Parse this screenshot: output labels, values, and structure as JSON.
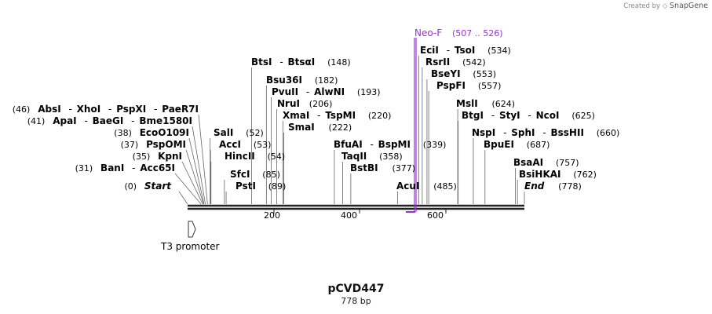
{
  "watermark": {
    "created_by": "Created by",
    "brand": "SnapGene"
  },
  "plasmid": {
    "name": "pCVD447",
    "size": "778 bp",
    "length": 778
  },
  "axis_ticks": [
    "200",
    "400",
    "600"
  ],
  "primer": {
    "name": "Neo-F",
    "range": "(507 .. 526)",
    "color": "#9b30d8",
    "start": 507,
    "end": 526
  },
  "feature": {
    "name": "T3 promoter"
  },
  "sites_left": [
    {
      "parts": [
        "AbsI",
        "XhoI",
        "PspXI",
        "PaeR7I"
      ],
      "pos": "(46)"
    },
    {
      "parts": [
        "ApaI",
        "BaeGI",
        "Bme1580I"
      ],
      "pos": "(41)"
    },
    {
      "parts": [
        "EcoO109I"
      ],
      "pos": "(38)"
    },
    {
      "parts": [
        "PspOMI"
      ],
      "pos": "(37)"
    },
    {
      "parts": [
        "KpnI"
      ],
      "pos": "(35)"
    },
    {
      "parts": [
        "BanI",
        "Acc65I"
      ],
      "pos": "(31)"
    },
    {
      "parts": [
        "Start"
      ],
      "pos": "(0)",
      "italic": true
    }
  ],
  "sites_right": [
    {
      "parts": [
        "BtsI",
        "BtsαI"
      ],
      "pos": "(148)"
    },
    {
      "parts": [
        "Bsu36I"
      ],
      "pos": "(182)"
    },
    {
      "parts": [
        "PvuII",
        "AlwNI"
      ],
      "pos": "(193)"
    },
    {
      "parts": [
        "NruI"
      ],
      "pos": "(206)"
    },
    {
      "parts": [
        "XmaI",
        "TspMI"
      ],
      "pos": "(220)"
    },
    {
      "parts": [
        "SmaI"
      ],
      "pos": "(222)"
    },
    {
      "parts": [
        "SalI"
      ],
      "pos": "(52)"
    },
    {
      "parts": [
        "AccI"
      ],
      "pos": "(53)"
    },
    {
      "parts": [
        "HincII"
      ],
      "pos": "(54)"
    },
    {
      "parts": [
        "SfcI"
      ],
      "pos": "(85)"
    },
    {
      "parts": [
        "PstI"
      ],
      "pos": "(89)"
    },
    {
      "parts": [
        "BfuAI",
        "BspMI"
      ],
      "pos": "(339)"
    },
    {
      "parts": [
        "TaqII"
      ],
      "pos": "(358)"
    },
    {
      "parts": [
        "BstBI"
      ],
      "pos": "(377)"
    },
    {
      "parts": [
        "AcuI"
      ],
      "pos": "(485)"
    },
    {
      "parts": [
        "EciI",
        "TsoI"
      ],
      "pos": "(534)"
    },
    {
      "parts": [
        "RsrII"
      ],
      "pos": "(542)"
    },
    {
      "parts": [
        "BseYI"
      ],
      "pos": "(553)"
    },
    {
      "parts": [
        "PspFI"
      ],
      "pos": "(557)"
    },
    {
      "parts": [
        "MslI"
      ],
      "pos": "(624)"
    },
    {
      "parts": [
        "BtgI",
        "StyI",
        "NcoI"
      ],
      "pos": "(625)"
    },
    {
      "parts": [
        "NspI",
        "SphI",
        "BssHII"
      ],
      "pos": "(660)"
    },
    {
      "parts": [
        "BpuEI"
      ],
      "pos": "(687)"
    },
    {
      "parts": [
        "BsaAI"
      ],
      "pos": "(757)"
    },
    {
      "parts": [
        "BsiHKAI"
      ],
      "pos": "(762)"
    },
    {
      "parts": [
        "End"
      ],
      "pos": "(778)",
      "italic": true
    }
  ]
}
